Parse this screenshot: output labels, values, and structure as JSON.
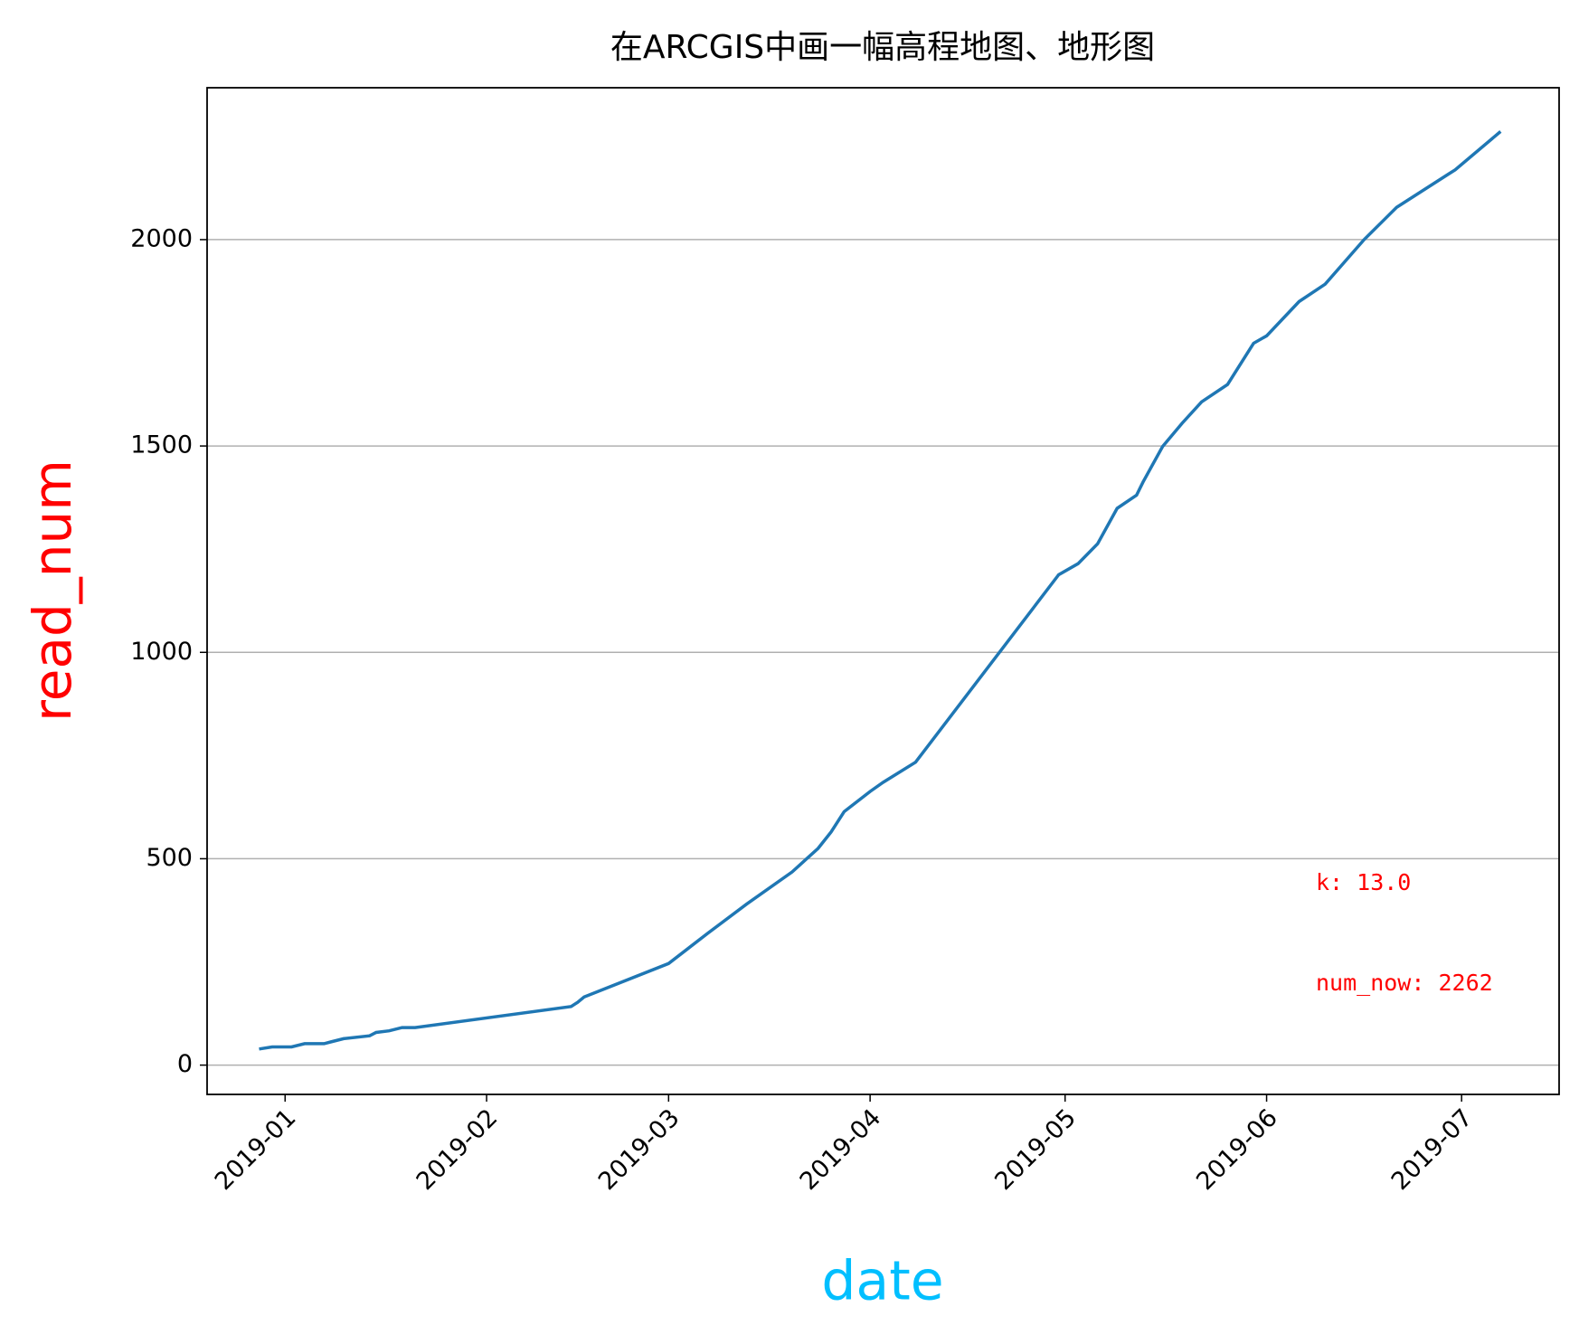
{
  "chart_data": {
    "type": "line",
    "title": "在ARCGIS中画一幅高程地图、地形图",
    "xlabel": "date",
    "ylabel": "read_num",
    "xlabel_color": "#00bfff",
    "ylabel_color": "#ff0000",
    "color": "#1f77b4",
    "grid": "y",
    "x": [
      "2018-12-28",
      "2018-12-30",
      "2019-01-02",
      "2019-01-04",
      "2019-01-07",
      "2019-01-08",
      "2019-01-10",
      "2019-01-14",
      "2019-01-15",
      "2019-01-17",
      "2019-01-19",
      "2019-01-21",
      "2019-02-14",
      "2019-02-15",
      "2019-02-16",
      "2019-03-01",
      "2019-03-07",
      "2019-03-13",
      "2019-03-20",
      "2019-03-24",
      "2019-03-26",
      "2019-03-28",
      "2019-04-01",
      "2019-04-03",
      "2019-04-08",
      "2019-04-30",
      "2019-05-03",
      "2019-05-06",
      "2019-05-09",
      "2019-05-12",
      "2019-05-13",
      "2019-05-16",
      "2019-05-19",
      "2019-05-22",
      "2019-05-26",
      "2019-05-30",
      "2019-06-01",
      "2019-06-06",
      "2019-06-10",
      "2019-06-16",
      "2019-06-21",
      "2019-06-29",
      "2019-06-30",
      "2019-07-07"
    ],
    "values": [
      39,
      44,
      44,
      52,
      52,
      56,
      64,
      71,
      79,
      83,
      91,
      91,
      142,
      152,
      165,
      246,
      319,
      390,
      468,
      525,
      565,
      614,
      663,
      685,
      734,
      1188,
      1215,
      1263,
      1349,
      1381,
      1413,
      1499,
      1555,
      1607,
      1649,
      1749,
      1767,
      1850,
      1892,
      2000,
      2078,
      2159,
      2169,
      2262
    ],
    "xlim": [
      "2018-12-20",
      "2019-07-16"
    ],
    "xticks": [
      {
        "value": "2019-01-01",
        "label": "2019-01"
      },
      {
        "value": "2019-02-01",
        "label": "2019-02"
      },
      {
        "value": "2019-03-01",
        "label": "2019-03"
      },
      {
        "value": "2019-04-01",
        "label": "2019-04"
      },
      {
        "value": "2019-05-01",
        "label": "2019-05"
      },
      {
        "value": "2019-06-01",
        "label": "2019-06"
      },
      {
        "value": "2019-07-01",
        "label": "2019-07"
      }
    ],
    "ylim": [
      -71,
      2368
    ],
    "yticks": [
      0,
      500,
      1000,
      1500,
      2000
    ],
    "annotations": [
      {
        "text": "k: 13.0",
        "color": "#ff0000"
      },
      {
        "text": "num_now: 2262",
        "color": "#ff0000"
      }
    ]
  }
}
